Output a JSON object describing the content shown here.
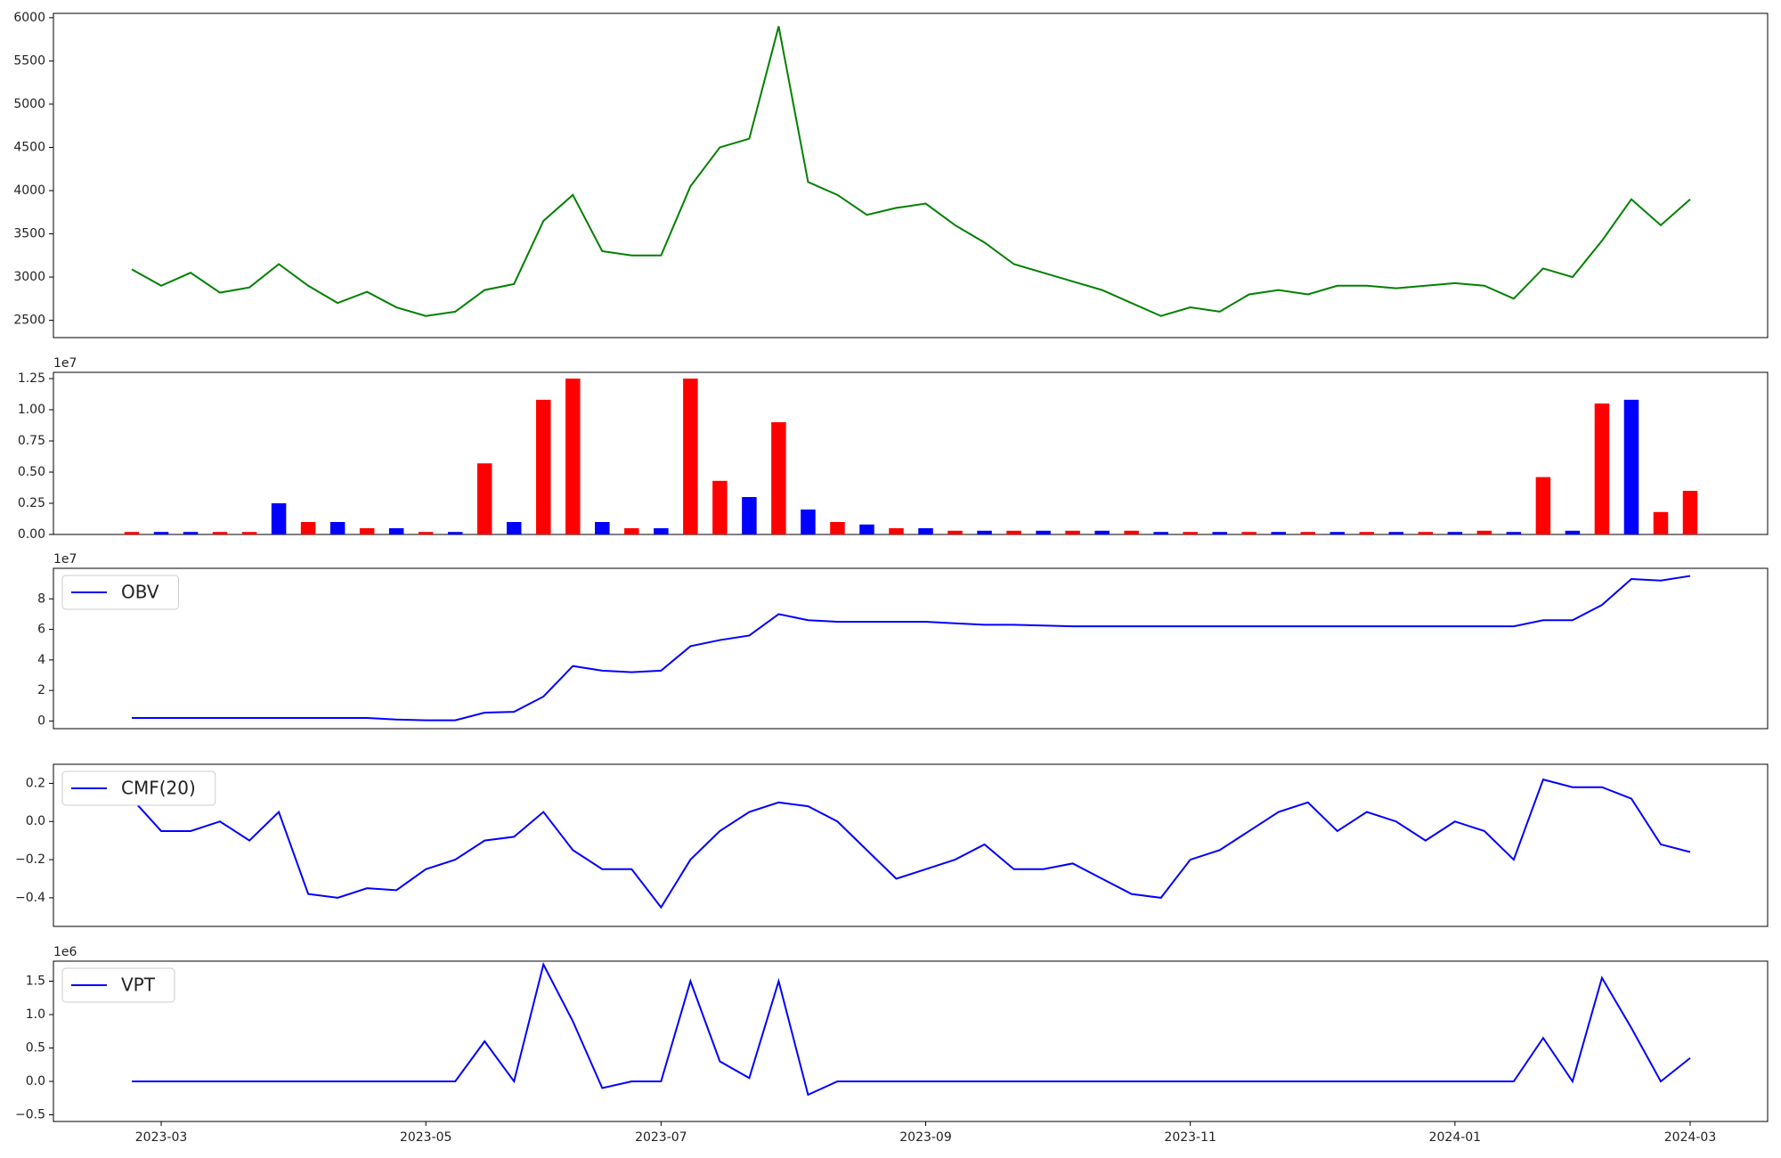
{
  "chart_data": [
    {
      "type": "line",
      "color": "green",
      "values": [
        3090,
        2900,
        3050,
        2820,
        2880,
        3150,
        2900,
        2700,
        2830,
        2650,
        2550,
        2600,
        2850,
        2920,
        3650,
        3950,
        3300,
        3250,
        3250,
        4050,
        4500,
        4600,
        5900,
        4100,
        3950,
        3720,
        3800,
        3850,
        3600,
        3400,
        3150,
        3050,
        2950,
        2850,
        2700,
        2550,
        2650,
        2600,
        2800,
        2850,
        2800,
        2900,
        2900,
        2870,
        2900,
        2930,
        2900,
        2750,
        3100,
        3000,
        3420,
        3900,
        3600,
        3900
      ],
      "ylim": [
        2300,
        6050
      ],
      "yticks": [
        2500,
        3000,
        3500,
        4000,
        4500,
        5000,
        5500,
        6000
      ]
    },
    {
      "type": "bar",
      "offset_text": "1e7",
      "values": [
        0.02,
        0.02,
        0.02,
        0.02,
        0.02,
        0.25,
        0.1,
        0.1,
        0.05,
        0.05,
        0.02,
        0.02,
        0.57,
        0.1,
        1.08,
        1.25,
        0.1,
        0.05,
        0.05,
        1.25,
        0.43,
        0.3,
        0.9,
        0.2,
        0.1,
        0.08,
        0.05,
        0.05,
        0.03,
        0.03,
        0.03,
        0.03,
        0.03,
        0.03,
        0.03,
        0.02,
        0.02,
        0.02,
        0.02,
        0.02,
        0.02,
        0.02,
        0.02,
        0.02,
        0.02,
        0.02,
        0.03,
        0.02,
        0.46,
        0.03,
        1.05,
        1.08,
        0.18,
        0.35
      ],
      "colors": [
        "red",
        "blue",
        "blue",
        "red",
        "red",
        "blue",
        "red",
        "blue",
        "red",
        "blue",
        "red",
        "blue",
        "red",
        "blue",
        "red",
        "red",
        "blue",
        "red",
        "blue",
        "red",
        "red",
        "blue",
        "red",
        "blue",
        "red",
        "blue",
        "red",
        "blue",
        "red",
        "blue",
        "red",
        "blue",
        "red",
        "blue",
        "red",
        "blue",
        "red",
        "blue",
        "red",
        "blue",
        "red",
        "blue",
        "red",
        "blue",
        "red",
        "blue",
        "red",
        "blue",
        "red",
        "blue",
        "red",
        "blue",
        "red",
        "red"
      ],
      "ylim": [
        0,
        1.3
      ],
      "yticks": [
        {
          "value": 0,
          "label": "0.00"
        },
        {
          "value": 0.25,
          "label": "0.25"
        },
        {
          "value": 0.5,
          "label": "0.50"
        },
        {
          "value": 0.75,
          "label": "0.75"
        },
        {
          "value": 1,
          "label": "1.00"
        },
        {
          "value": 1.25,
          "label": "1.25"
        }
      ]
    },
    {
      "type": "line",
      "offset_text": "1e7",
      "legend": "upper left",
      "series": [
        {
          "name": "OBV",
          "color": "blue",
          "values": [
            0.2,
            0.2,
            0.2,
            0.2,
            0.2,
            0.2,
            0.2,
            0.2,
            0.2,
            0.1,
            0.05,
            0.05,
            0.55,
            0.6,
            1.6,
            3.6,
            3.3,
            3.2,
            3.3,
            4.9,
            5.3,
            5.6,
            7.0,
            6.6,
            6.5,
            6.5,
            6.5,
            6.5,
            6.4,
            6.3,
            6.3,
            6.25,
            6.2,
            6.2,
            6.2,
            6.2,
            6.2,
            6.2,
            6.2,
            6.2,
            6.2,
            6.2,
            6.2,
            6.2,
            6.2,
            6.2,
            6.2,
            6.2,
            6.6,
            6.6,
            7.6,
            9.3,
            9.2,
            9.5
          ]
        }
      ],
      "ylim": [
        -0.5,
        10
      ],
      "yticks": [
        0,
        2,
        4,
        6,
        8
      ]
    },
    {
      "type": "line",
      "legend": "upper left",
      "series": [
        {
          "name": "CMF(20)",
          "color": "blue",
          "values": [
            0.12,
            -0.05,
            -0.05,
            0.0,
            -0.1,
            0.05,
            -0.38,
            -0.4,
            -0.35,
            -0.36,
            -0.25,
            -0.2,
            -0.1,
            -0.08,
            0.05,
            -0.15,
            -0.25,
            -0.25,
            -0.45,
            -0.2,
            -0.05,
            0.05,
            0.1,
            0.08,
            0.0,
            -0.15,
            -0.3,
            -0.25,
            -0.2,
            -0.12,
            -0.25,
            -0.25,
            -0.22,
            -0.3,
            -0.38,
            -0.4,
            -0.2,
            -0.15,
            -0.05,
            0.05,
            0.1,
            -0.05,
            0.05,
            0.0,
            -0.1,
            0.0,
            -0.05,
            -0.2,
            0.22,
            0.18,
            0.18,
            0.12,
            -0.12,
            -0.16
          ]
        }
      ],
      "ylim": [
        -0.55,
        0.3
      ],
      "yticks": [
        {
          "value": -0.4,
          "label": "−0.4"
        },
        {
          "value": -0.2,
          "label": "−0.2"
        },
        {
          "value": 0,
          "label": "0.0"
        },
        {
          "value": 0.2,
          "label": "0.2"
        }
      ]
    },
    {
      "type": "line",
      "offset_text": "1e6",
      "legend": "upper left",
      "series": [
        {
          "name": "VPT",
          "color": "blue",
          "values": [
            0,
            0,
            0,
            0,
            0,
            0,
            0,
            0,
            0,
            0,
            0,
            0,
            0.6,
            0,
            1.75,
            0.9,
            -0.1,
            0,
            0,
            1.5,
            0.3,
            0.05,
            1.5,
            -0.2,
            0,
            0,
            0,
            0,
            0,
            0,
            0,
            0,
            0,
            0,
            0,
            0,
            0,
            0,
            0,
            0,
            0,
            0,
            0,
            0,
            0,
            0,
            0,
            0,
            0.65,
            0,
            1.55,
            0.8,
            0,
            0.35
          ]
        }
      ],
      "ylim": [
        -0.6,
        1.8
      ],
      "yticks": [
        {
          "value": -0.5,
          "label": "−0.5"
        },
        {
          "value": 0,
          "label": "0.0"
        },
        {
          "value": 0.5,
          "label": "0.5"
        },
        {
          "value": 1,
          "label": "1.0"
        },
        {
          "value": 1.5,
          "label": "1.5"
        }
      ],
      "categories": [
        null,
        "2023-03",
        null,
        null,
        null,
        null,
        null,
        null,
        null,
        null,
        "2023-05",
        null,
        null,
        null,
        null,
        null,
        null,
        null,
        "2023-07",
        null,
        null,
        null,
        null,
        null,
        null,
        null,
        null,
        "2023-09",
        null,
        null,
        null,
        null,
        null,
        null,
        null,
        null,
        "2023-11",
        null,
        null,
        null,
        null,
        null,
        null,
        null,
        null,
        "2024-01",
        null,
        null,
        null,
        null,
        null,
        null,
        null,
        "2024-03"
      ]
    }
  ]
}
